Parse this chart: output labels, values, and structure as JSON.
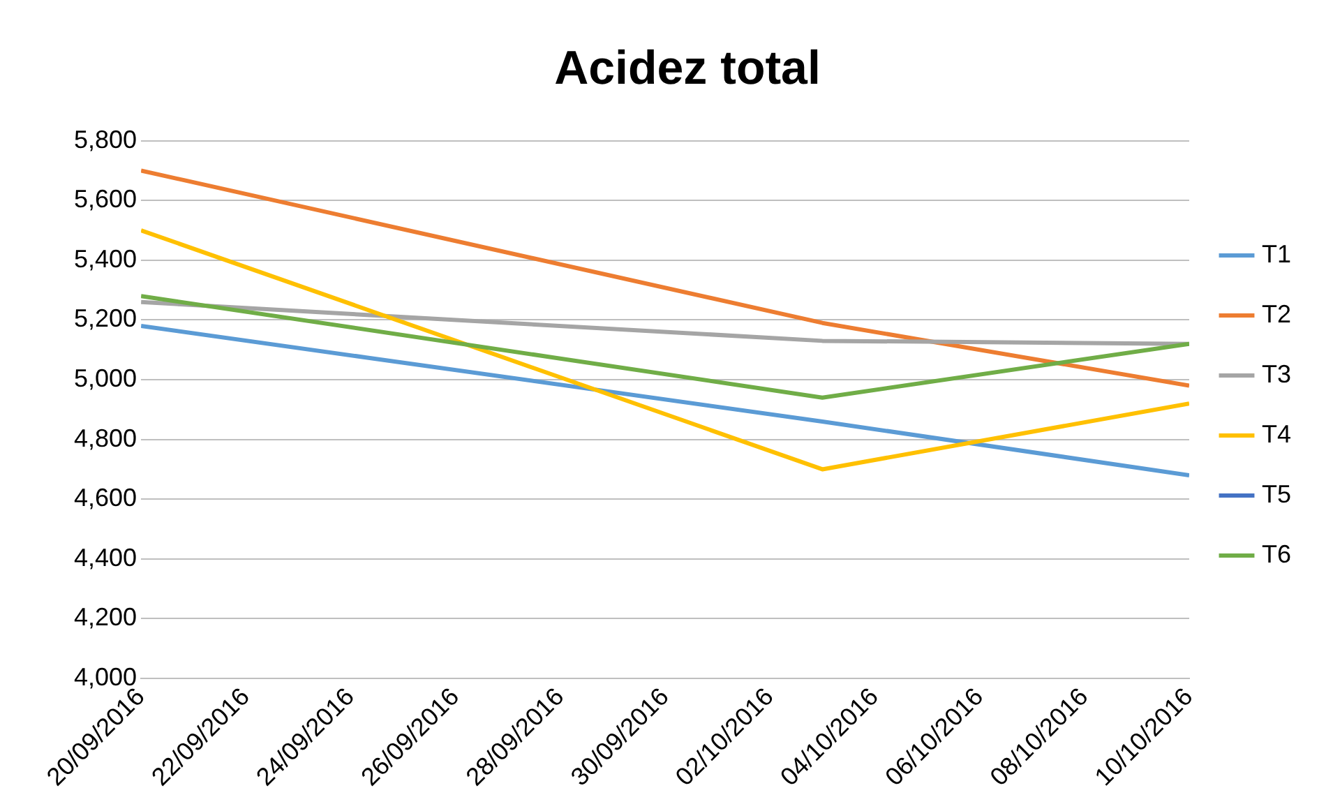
{
  "chart_data": {
    "type": "line",
    "title": "Acidez total",
    "x": [
      "2016-09-20",
      "2016-10-03",
      "2016-10-10"
    ],
    "series": [
      {
        "name": "T1",
        "color": "#5b9bd5",
        "values": [
          5180,
          4860,
          4680
        ]
      },
      {
        "name": "T2",
        "color": "#ed7d31",
        "values": [
          5700,
          5190,
          4980
        ]
      },
      {
        "name": "T3",
        "color": "#a5a5a5",
        "values": [
          5260,
          5130,
          5120
        ]
      },
      {
        "name": "T4",
        "color": "#ffc000",
        "values": [
          5500,
          4700,
          4920
        ]
      },
      {
        "name": "T5",
        "color": "#4472c4",
        "values": [
          null,
          null,
          null
        ]
      },
      {
        "name": "T6",
        "color": "#70ad47",
        "values": [
          5280,
          4940,
          5120
        ]
      }
    ],
    "xlim": [
      "2016-09-20",
      "2016-10-10"
    ],
    "xticks": [
      {
        "value": "2016-09-20",
        "label": "20/09/2016"
      },
      {
        "value": "2016-09-22",
        "label": "22/09/2016"
      },
      {
        "value": "2016-09-24",
        "label": "24/09/2016"
      },
      {
        "value": "2016-09-26",
        "label": "26/09/2016"
      },
      {
        "value": "2016-09-28",
        "label": "28/09/2016"
      },
      {
        "value": "2016-09-30",
        "label": "30/09/2016"
      },
      {
        "value": "2016-10-02",
        "label": "02/10/2016"
      },
      {
        "value": "2016-10-04",
        "label": "04/10/2016"
      },
      {
        "value": "2016-10-06",
        "label": "06/10/2016"
      },
      {
        "value": "2016-10-08",
        "label": "08/10/2016"
      },
      {
        "value": "2016-10-10",
        "label": "10/10/2016"
      }
    ],
    "ylim": [
      4000,
      5800
    ],
    "yticks": [
      {
        "value": 4000,
        "label": "4,000"
      },
      {
        "value": 4200,
        "label": "4,200"
      },
      {
        "value": 4400,
        "label": "4,400"
      },
      {
        "value": 4600,
        "label": "4,600"
      },
      {
        "value": 4800,
        "label": "4,800"
      },
      {
        "value": 5000,
        "label": "5,000"
      },
      {
        "value": 5200,
        "label": "5,200"
      },
      {
        "value": 5400,
        "label": "5,400"
      },
      {
        "value": 5600,
        "label": "5,600"
      },
      {
        "value": 5800,
        "label": "5,800"
      }
    ],
    "grid": "y",
    "legend": "right",
    "marker": "none",
    "line_style": "solid"
  }
}
